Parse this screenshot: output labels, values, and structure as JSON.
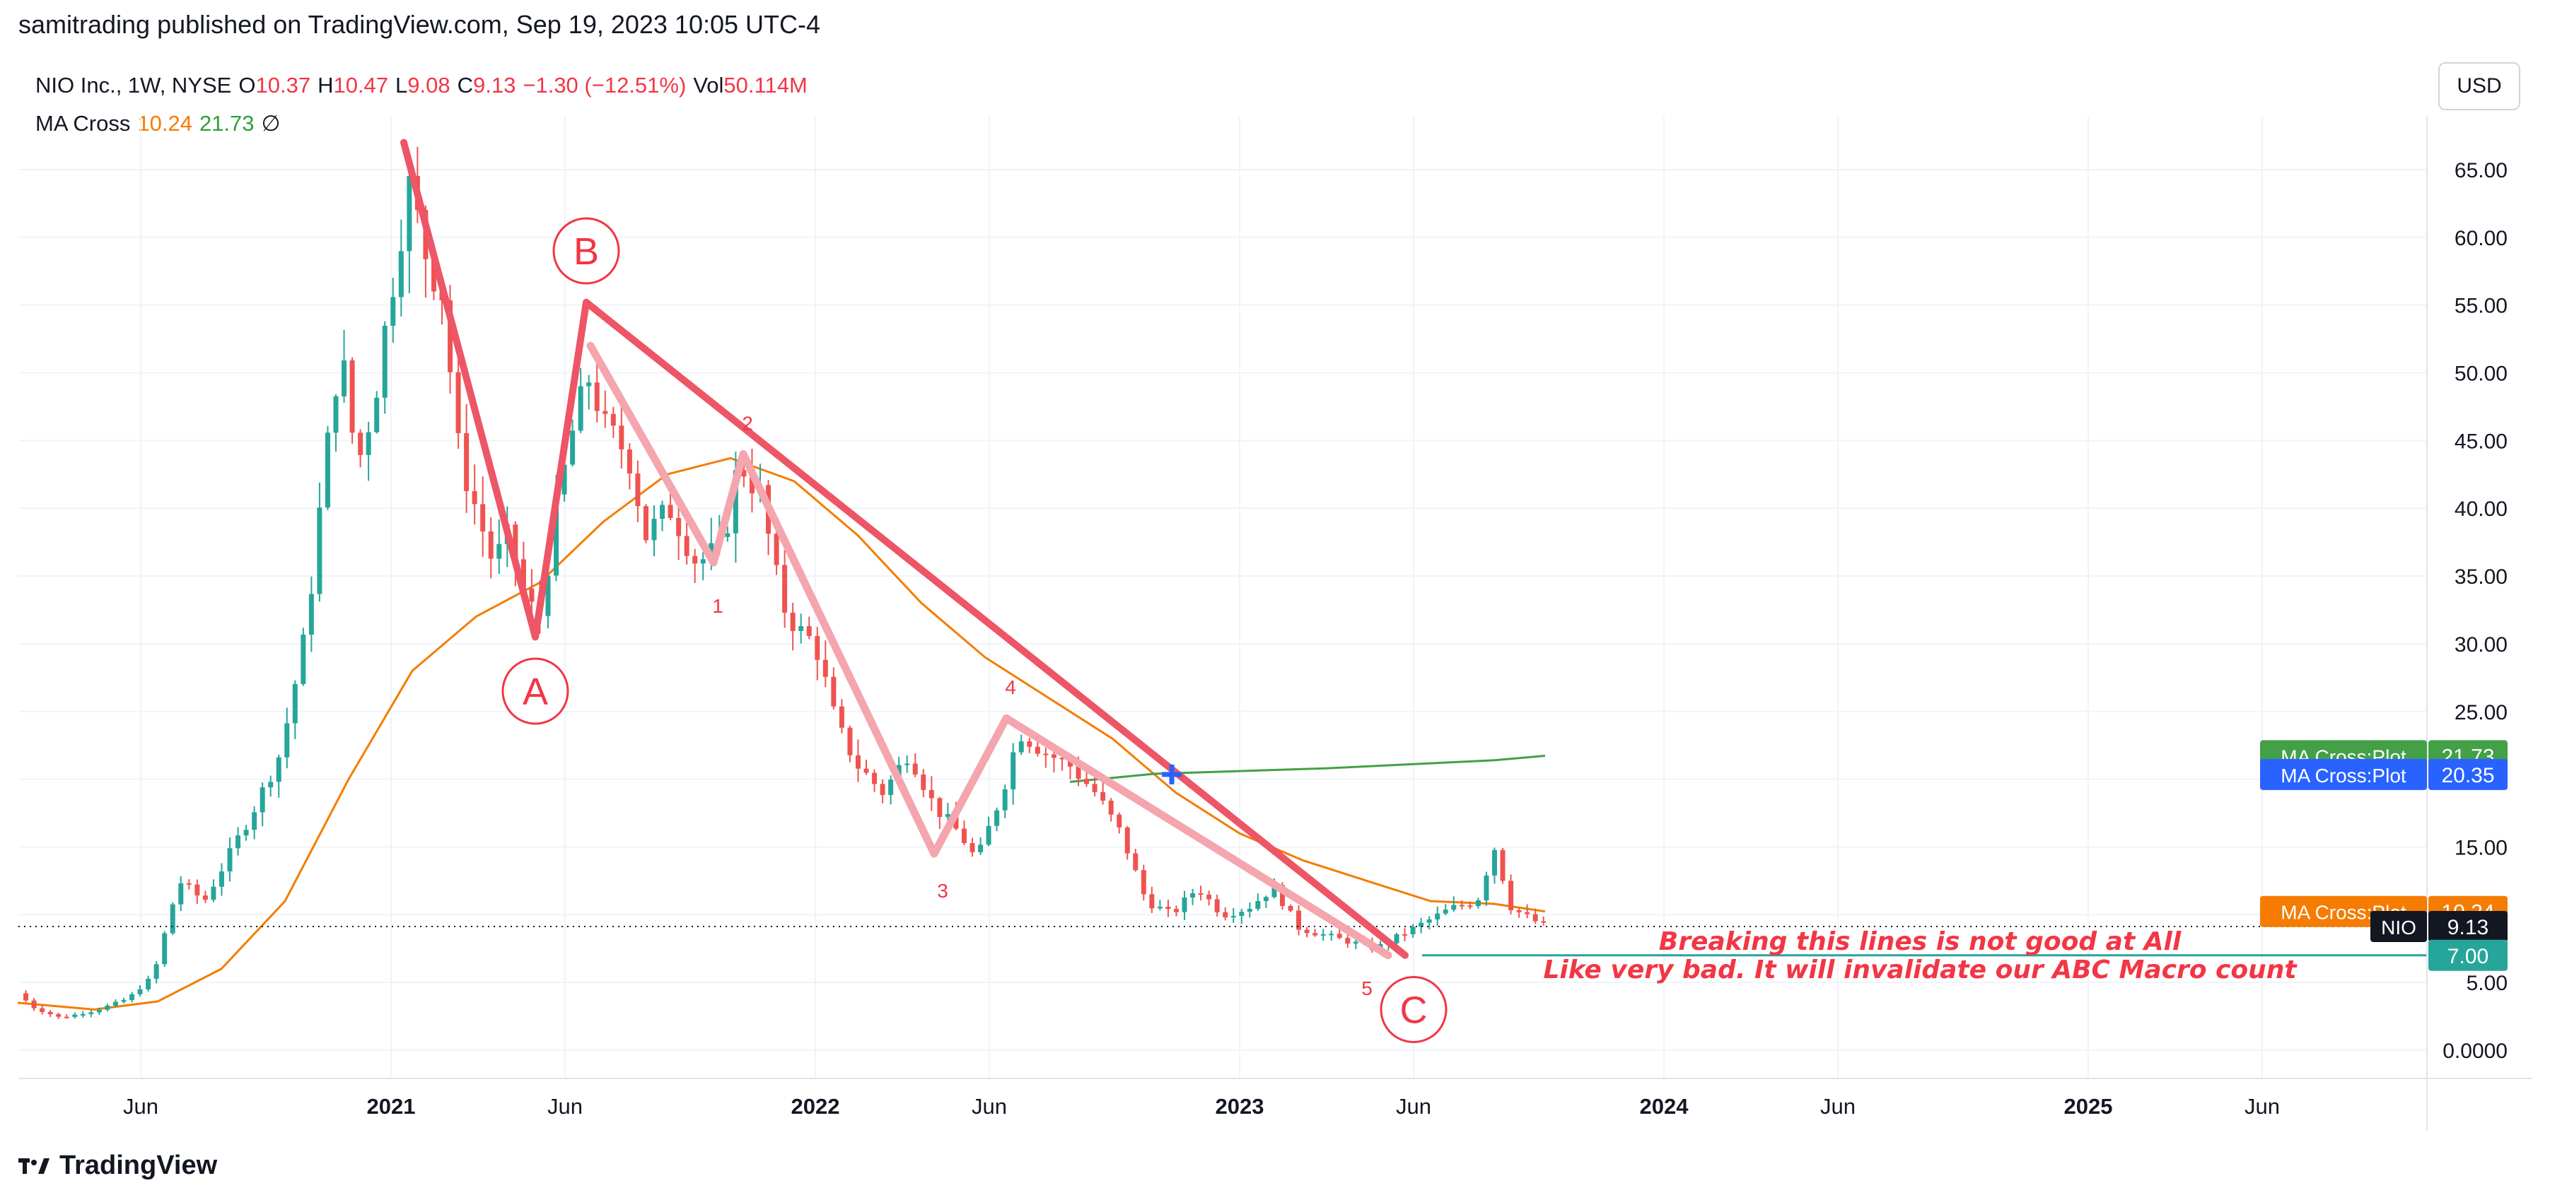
{
  "header": {
    "publisher": "samitrading published on TradingView.com, Sep 19, 2023 10:05 UTC-4"
  },
  "currency": "USD",
  "legend": {
    "symbol": "NIO Inc., 1W, NYSE",
    "o_label": "O",
    "o_value": "10.37",
    "h_label": "H",
    "h_value": "10.47",
    "l_label": "L",
    "l_value": "9.08",
    "c_label": "C",
    "c_value": "9.13",
    "change": "−1.30 (−12.51%)",
    "vol_label": "Vol",
    "vol_value": "50.114M",
    "ma_name": "MA Cross",
    "ma_fast": "10.24",
    "ma_slow": "21.73",
    "ma_extra": "∅"
  },
  "footer": {
    "brand": "TradingView"
  },
  "colors": {
    "up": "#26a69a",
    "down": "#ef5350",
    "wave": "#ee5566",
    "wave_light": "#f4a5ae",
    "ma_fast": "#f57c00",
    "ma_slow": "#43a047",
    "support": "#26a69a"
  },
  "chart_data": {
    "type": "candlestick",
    "ticker": "NIO",
    "interval": "1W",
    "y_ticks": [
      "65.00",
      "60.00",
      "55.00",
      "50.00",
      "45.00",
      "40.00",
      "35.00",
      "30.00",
      "25.00",
      "20.00",
      "15.00",
      "10.00",
      "5.00",
      "0.0000"
    ],
    "x_ticks": [
      {
        "label": "Jun",
        "t": 2020.41
      },
      {
        "label": "2021",
        "t": 2021.0
      },
      {
        "label": "Jun",
        "t": 2021.41
      },
      {
        "label": "2022",
        "t": 2022.0
      },
      {
        "label": "Jun",
        "t": 2022.41
      },
      {
        "label": "2023",
        "t": 2023.0
      },
      {
        "label": "Jun",
        "t": 2023.41
      },
      {
        "label": "2024",
        "t": 2024.0
      },
      {
        "label": "Jun",
        "t": 2024.41
      },
      {
        "label": "2025",
        "t": 2025.0
      },
      {
        "label": "Jun",
        "t": 2025.41
      }
    ],
    "ylim": [
      0,
      67
    ],
    "close_path": [
      [
        2020.12,
        4.2
      ],
      [
        2020.16,
        3.1
      ],
      [
        2020.22,
        2.4
      ],
      [
        2020.3,
        2.9
      ],
      [
        2020.38,
        3.8
      ],
      [
        2020.44,
        5.5
      ],
      [
        2020.5,
        12.5
      ],
      [
        2020.56,
        11.0
      ],
      [
        2020.62,
        14.5
      ],
      [
        2020.68,
        18.0
      ],
      [
        2020.74,
        22.0
      ],
      [
        2020.8,
        31.0
      ],
      [
        2020.84,
        42.0
      ],
      [
        2020.88,
        52.0
      ],
      [
        2020.92,
        43.0
      ],
      [
        2020.96,
        48.0
      ],
      [
        2021.01,
        58.0
      ],
      [
        2021.04,
        64.0
      ],
      [
        2021.08,
        59.0
      ],
      [
        2021.12,
        56.0
      ],
      [
        2021.16,
        44.0
      ],
      [
        2021.2,
        40.0
      ],
      [
        2021.24,
        36.0
      ],
      [
        2021.28,
        38.0
      ],
      [
        2021.32,
        33.0
      ],
      [
        2021.35,
        32.0
      ],
      [
        2021.39,
        40.0
      ],
      [
        2021.43,
        46.0
      ],
      [
        2021.47,
        50.0
      ],
      [
        2021.5,
        46.0
      ],
      [
        2021.56,
        44.0
      ],
      [
        2021.6,
        38.0
      ],
      [
        2021.66,
        40.0
      ],
      [
        2021.72,
        36.0
      ],
      [
        2021.78,
        37.0
      ],
      [
        2021.82,
        43.5
      ],
      [
        2021.87,
        41.0
      ],
      [
        2021.92,
        33.0
      ],
      [
        2021.96,
        31.0
      ],
      [
        2022.0,
        30.0
      ],
      [
        2022.05,
        24.0
      ],
      [
        2022.1,
        21.0
      ],
      [
        2022.16,
        19.0
      ],
      [
        2022.22,
        22.0
      ],
      [
        2022.28,
        18.0
      ],
      [
        2022.34,
        16.0
      ],
      [
        2022.38,
        14.0
      ],
      [
        2022.44,
        19.0
      ],
      [
        2022.48,
        23.5
      ],
      [
        2022.54,
        22.0
      ],
      [
        2022.6,
        21.0
      ],
      [
        2022.66,
        19.0
      ],
      [
        2022.72,
        16.0
      ],
      [
        2022.78,
        11.0
      ],
      [
        2022.84,
        10.0
      ],
      [
        2022.9,
        12.0
      ],
      [
        2022.96,
        10.0
      ],
      [
        2023.02,
        10.5
      ],
      [
        2023.08,
        12.0
      ],
      [
        2023.14,
        9.0
      ],
      [
        2023.2,
        8.5
      ],
      [
        2023.26,
        8.0
      ],
      [
        2023.32,
        7.5
      ],
      [
        2023.38,
        8.5
      ],
      [
        2023.44,
        9.5
      ],
      [
        2023.5,
        10.5
      ],
      [
        2023.56,
        11.0
      ],
      [
        2023.6,
        15.0
      ],
      [
        2023.64,
        10.5
      ],
      [
        2023.68,
        9.8
      ],
      [
        2023.72,
        9.13
      ]
    ],
    "ma_fast": [
      [
        2020.12,
        3.5
      ],
      [
        2020.3,
        3.0
      ],
      [
        2020.45,
        3.6
      ],
      [
        2020.6,
        6.0
      ],
      [
        2020.75,
        11.0
      ],
      [
        2020.9,
        20.0
      ],
      [
        2021.05,
        28.0
      ],
      [
        2021.2,
        32.0
      ],
      [
        2021.35,
        34.5
      ],
      [
        2021.5,
        39.0
      ],
      [
        2021.65,
        42.5
      ],
      [
        2021.8,
        43.7
      ],
      [
        2021.95,
        42.0
      ],
      [
        2022.1,
        38.0
      ],
      [
        2022.25,
        33.0
      ],
      [
        2022.4,
        29.0
      ],
      [
        2022.55,
        26.0
      ],
      [
        2022.7,
        23.0
      ],
      [
        2022.85,
        19.0
      ],
      [
        2023.0,
        16.0
      ],
      [
        2023.15,
        14.0
      ],
      [
        2023.3,
        12.5
      ],
      [
        2023.45,
        11.0
      ],
      [
        2023.6,
        10.8
      ],
      [
        2023.72,
        10.24
      ]
    ],
    "ma_slow": [
      [
        2022.6,
        19.8
      ],
      [
        2022.8,
        20.4
      ],
      [
        2023.0,
        20.6
      ],
      [
        2023.2,
        20.8
      ],
      [
        2023.4,
        21.1
      ],
      [
        2023.6,
        21.4
      ],
      [
        2023.72,
        21.73
      ]
    ],
    "waves": {
      "main": [
        [
          2021.03,
          67.0
        ],
        [
          2021.34,
          30.5
        ],
        [
          2021.46,
          55.2
        ],
        [
          2023.39,
          7.0
        ]
      ],
      "inner": [
        [
          2021.47,
          52.0
        ],
        [
          2021.76,
          36.0
        ],
        [
          2021.83,
          44.0
        ],
        [
          2022.28,
          14.5
        ],
        [
          2022.45,
          24.5
        ],
        [
          2023.35,
          7.0
        ]
      ]
    },
    "wave_labels_major": [
      {
        "text": "A",
        "t": 2021.34,
        "y": 26.5
      },
      {
        "text": "B",
        "t": 2021.46,
        "y": 59.0
      },
      {
        "text": "C",
        "t": 2023.41,
        "y": 3.0
      }
    ],
    "wave_labels_minor": [
      {
        "text": "1",
        "t": 2021.77,
        "y": 32.8
      },
      {
        "text": "2",
        "t": 2021.84,
        "y": 46.3
      },
      {
        "text": "3",
        "t": 2022.3,
        "y": 11.8
      },
      {
        "text": "4",
        "t": 2022.46,
        "y": 26.8
      },
      {
        "text": "5",
        "t": 2023.3,
        "y": 4.6
      }
    ],
    "support_line": {
      "y": 7.0,
      "t_start": 2023.43
    },
    "price_line": {
      "y": 9.13
    },
    "cross_marker": {
      "t": 2022.84,
      "y": 20.35
    },
    "annotations": [
      "Breaking this lines is not good at All",
      "Like very bad. It will invalidate our ABC Macro count"
    ],
    "price_tags": [
      {
        "label": "MA Cross:Plot",
        "value": "21.73",
        "y": 21.73,
        "color": "#43a047"
      },
      {
        "label": "MA Cross:Plot",
        "value": "20.35",
        "y": 20.35,
        "color": "#2962ff"
      },
      {
        "label": "MA Cross:Plot",
        "value": "10.24",
        "y": 10.24,
        "color": "#f57c00"
      },
      {
        "label": "NIO",
        "value": "9.13",
        "y": 9.13,
        "color": "#131722"
      },
      {
        "label": "",
        "value": "7.00",
        "y": 7.0,
        "color": "#26a69a"
      }
    ]
  }
}
